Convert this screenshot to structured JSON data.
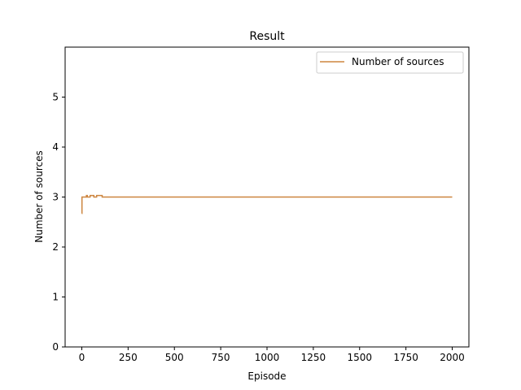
{
  "chart_data": {
    "type": "line",
    "title": "Result",
    "xlabel": "Episode",
    "ylabel": "Number of sources",
    "xlim": [
      -90,
      2090
    ],
    "ylim": [
      0,
      6
    ],
    "xticks": [
      0,
      250,
      500,
      750,
      1000,
      1250,
      1500,
      1750,
      2000
    ],
    "xtick_labels": [
      "0",
      "250",
      "500",
      "750",
      "1000",
      "1250",
      "1500",
      "1750",
      "2000"
    ],
    "yticks": [
      0,
      1,
      2,
      3,
      4,
      5
    ],
    "ytick_labels": [
      "0",
      "1",
      "2",
      "3",
      "4",
      "5"
    ],
    "grid": false,
    "legend_position": "upper right",
    "series": [
      {
        "name": "Number of sources",
        "color": "#cd853f",
        "step": true,
        "x": [
          0,
          1,
          25,
          30,
          45,
          65,
          80,
          95,
          110,
          2000
        ],
        "y": [
          2.67,
          3.0,
          3.03,
          3.0,
          3.03,
          3.0,
          3.03,
          3.03,
          3.0,
          3.0
        ]
      }
    ]
  }
}
